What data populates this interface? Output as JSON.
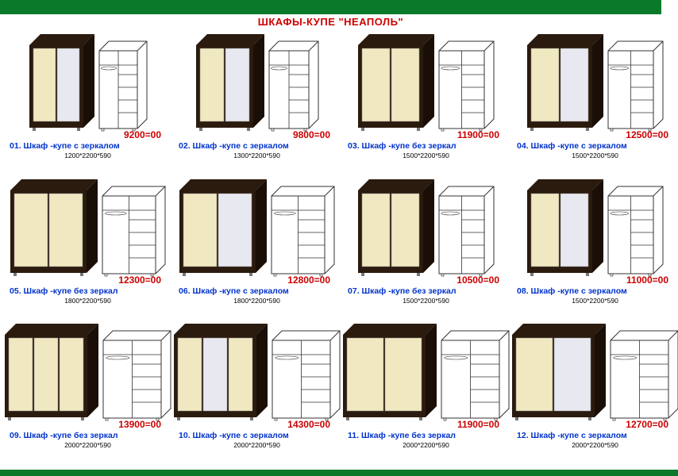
{
  "title": "ШКАФЫ-КУПЕ \"НЕАПОЛЬ\"",
  "colors": {
    "frame": "#2b1a0e",
    "door": "#f0e8c0",
    "mirror": "#e8e8f0",
    "line": "#333333",
    "header": "#0a7a2a",
    "price": "#cc0000",
    "name": "#0033cc"
  },
  "items": [
    {
      "id": "01",
      "label": "Шкаф -купе с зеркалом",
      "dims": "1200*2200*590",
      "price": "9200=00",
      "doors": 2,
      "mirror": true,
      "width": 68
    },
    {
      "id": "02",
      "label": "Шкаф -купе с зеркалом",
      "dims": "1300*2200*590",
      "price": "9800=00",
      "doors": 2,
      "mirror": true,
      "width": 72
    },
    {
      "id": "03",
      "label": "Шкаф -купе без зеркал",
      "dims": "1500*2200*590",
      "price": "11900=00",
      "doors": 2,
      "mirror": false,
      "width": 82
    },
    {
      "id": "04",
      "label": "Шкаф -купе с зеркалом",
      "dims": "1500*2200*590",
      "price": "12500=00",
      "doors": 2,
      "mirror": true,
      "width": 82
    },
    {
      "id": "05",
      "label": "Шкаф -купе без зеркал",
      "dims": "1800*2200*590",
      "price": "12300=00",
      "doors": 2,
      "mirror": false,
      "width": 96
    },
    {
      "id": "06",
      "label": "Шкаф -купе с зеркалом",
      "dims": "1800*2200*590",
      "price": "12800=00",
      "doors": 2,
      "mirror": true,
      "width": 96
    },
    {
      "id": "07",
      "label": "Шкаф -купе без зеркал",
      "dims": "1500*2200*590",
      "price": "10500=00",
      "doors": 2,
      "mirror": false,
      "width": 82
    },
    {
      "id": "08",
      "label": "Шкаф -купе с зеркалом",
      "dims": "1500*2200*590",
      "price": "11000=00",
      "doors": 2,
      "mirror": true,
      "width": 82
    },
    {
      "id": "09",
      "label": "Шкаф -купе без зеркал",
      "dims": "2000*2200*590",
      "price": "13900=00",
      "doors": 3,
      "mirror": false,
      "width": 104
    },
    {
      "id": "10",
      "label": "Шкаф -купе с зеркалом",
      "dims": "2000*2200*590",
      "price": "14300=00",
      "doors": 3,
      "mirror": true,
      "width": 104
    },
    {
      "id": "11",
      "label": "Шкаф -купе без зеркал",
      "dims": "2000*2200*590",
      "price": "11900=00",
      "doors": 2,
      "mirror": false,
      "width": 104
    },
    {
      "id": "12",
      "label": "Шкаф -купе с зеркалом",
      "dims": "2000*2200*590",
      "price": "12700=00",
      "doors": 2,
      "mirror": true,
      "width": 104
    }
  ]
}
